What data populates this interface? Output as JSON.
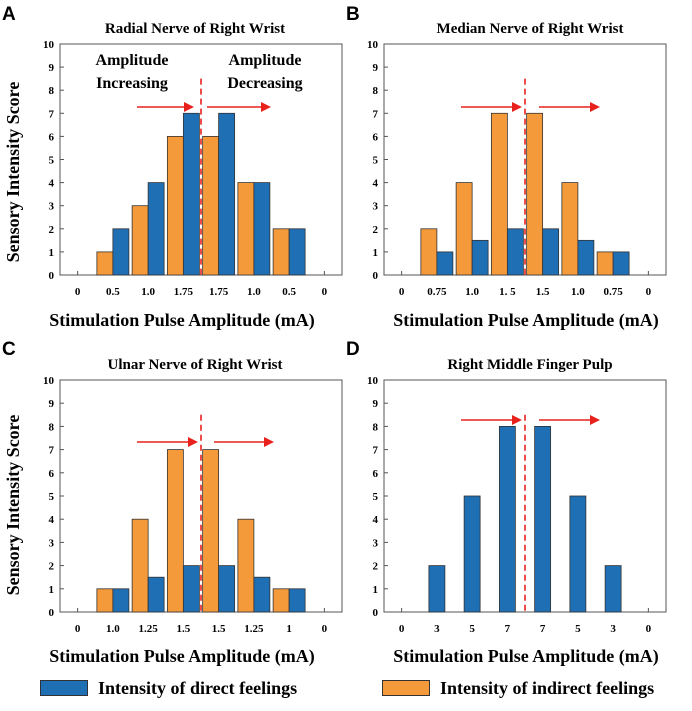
{
  "colors": {
    "direct": "#1f6fb4",
    "indirect": "#f59a3a",
    "arrow": "#e8211d",
    "divider": "#e8211d"
  },
  "shared": {
    "xlabel": "Stimulation Pulse Amplitude (mA)",
    "ylabel": "Sensory Intensity Score",
    "yticks": [
      "0",
      "1",
      "2",
      "3",
      "4",
      "5",
      "6",
      "7",
      "8",
      "9",
      "10"
    ]
  },
  "legend": {
    "direct": "Intensity of direct feelings",
    "indirect": "Intensity of indirect feelings"
  },
  "annotations": {
    "increasing_1": "Amplitude",
    "increasing_2": "Increasing",
    "decreasing_1": "Amplitude",
    "decreasing_2": "Decreasing"
  },
  "chart_data": [
    {
      "panel": "A",
      "type": "bar",
      "title": "Radial Nerve of Right Wrist",
      "categories": [
        "0",
        "0.5",
        "1.0",
        "1.75",
        "1.75",
        "1.0",
        "0.5",
        "0"
      ],
      "series": [
        {
          "name": "Intensity of indirect feelings",
          "values": [
            0,
            1,
            3,
            6,
            6,
            4,
            2,
            0
          ]
        },
        {
          "name": "Intensity of direct feelings",
          "values": [
            0,
            2,
            4,
            7,
            7,
            4,
            2,
            0
          ]
        }
      ],
      "ylim": [
        0,
        10
      ]
    },
    {
      "panel": "B",
      "type": "bar",
      "title": "Median Nerve of Right Wrist",
      "categories": [
        "0",
        "0.75",
        "1.0",
        "1. 5",
        "1.5",
        "1.0",
        "0.75",
        "0"
      ],
      "series": [
        {
          "name": "Intensity of indirect feelings",
          "values": [
            0,
            2,
            4,
            7,
            7,
            4,
            1,
            0
          ]
        },
        {
          "name": "Intensity of direct feelings",
          "values": [
            0,
            1,
            1.5,
            2,
            2,
            1.5,
            1,
            0
          ]
        }
      ],
      "ylim": [
        0,
        10
      ]
    },
    {
      "panel": "C",
      "type": "bar",
      "title": "Ulnar Nerve of Right Wrist",
      "categories": [
        "0",
        "1.0",
        "1.25",
        "1.5",
        "1.5",
        "1.25",
        "1",
        "0"
      ],
      "series": [
        {
          "name": "Intensity of indirect feelings",
          "values": [
            0,
            1,
            4,
            7,
            7,
            4,
            1,
            0
          ]
        },
        {
          "name": "Intensity of direct feelings",
          "values": [
            0,
            1,
            1.5,
            2,
            2,
            1.5,
            1,
            0
          ]
        }
      ],
      "ylim": [
        0,
        10
      ]
    },
    {
      "panel": "D",
      "type": "bar",
      "title": "Right Middle Finger Pulp",
      "categories": [
        "0",
        "3",
        "5",
        "7",
        "7",
        "5",
        "3",
        "0"
      ],
      "series": [
        {
          "name": "Intensity of indirect feelings",
          "values": [
            0,
            0,
            0,
            0,
            0,
            0,
            0,
            0
          ]
        },
        {
          "name": "Intensity of direct feelings",
          "values": [
            0,
            2,
            5,
            8,
            8,
            5,
            2,
            0
          ]
        }
      ],
      "ylim": [
        0,
        10
      ]
    }
  ]
}
